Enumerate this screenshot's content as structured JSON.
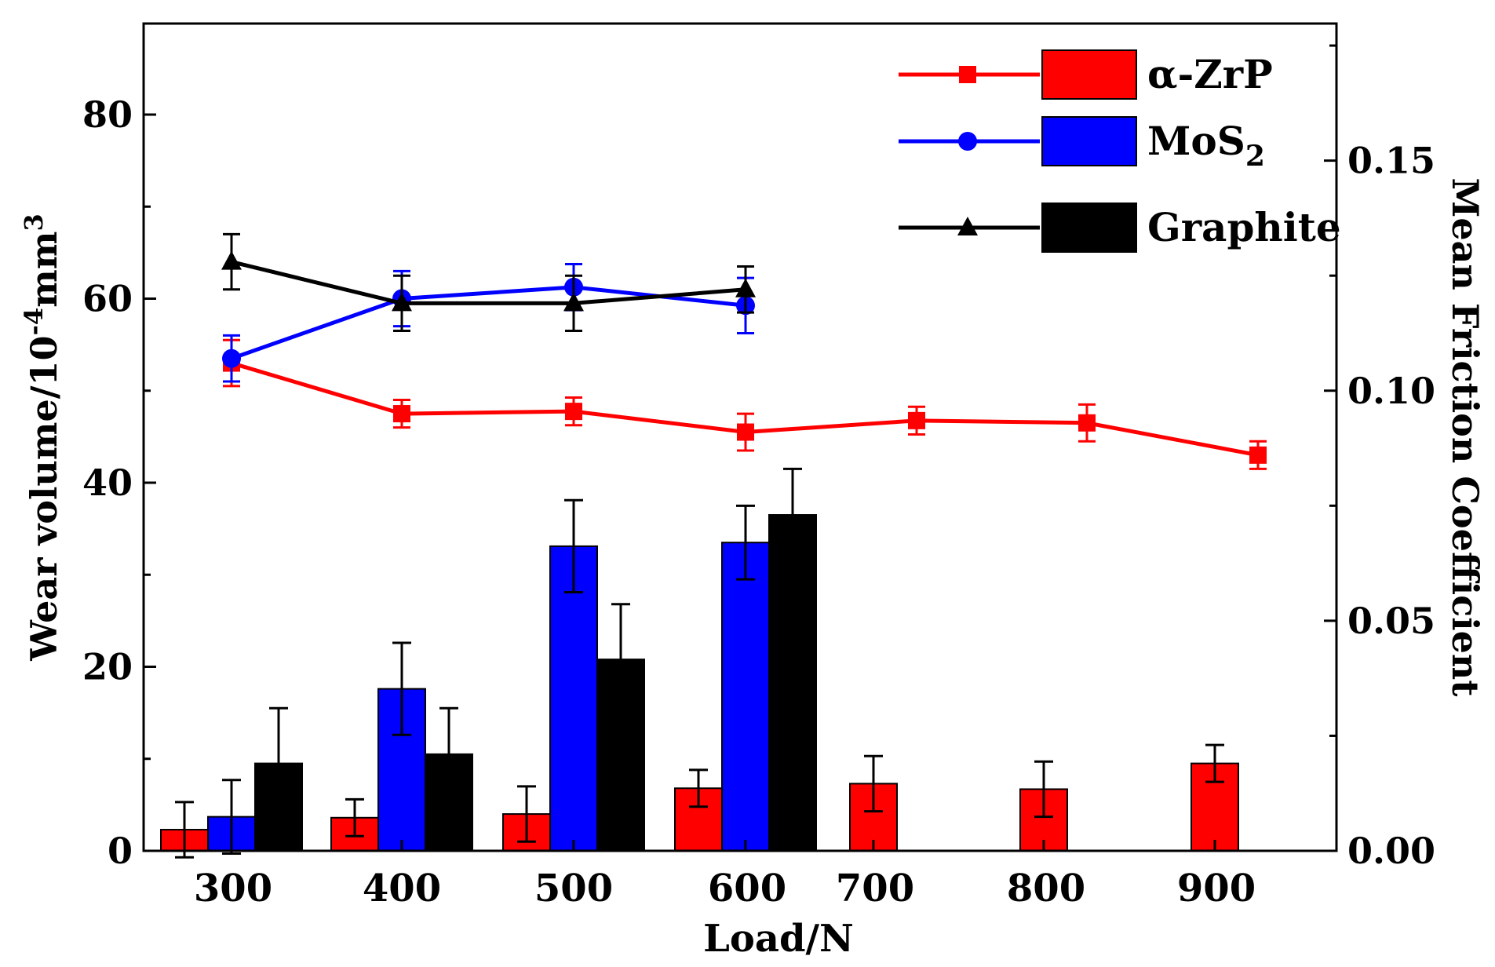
{
  "chart_data": {
    "type": "bar+line",
    "xlabel": "Load/N",
    "ylabel_left": {
      "main": "Wear volume/10",
      "sup1": "-4",
      "mid": "mm",
      "sup2": "3"
    },
    "ylabel_right": "Mean Friction Coefficient",
    "categories": [
      "300",
      "400",
      "500",
      "600",
      "700",
      "800",
      "900"
    ],
    "x": [
      300,
      400,
      500,
      600,
      700,
      800,
      900
    ],
    "ylim_left": [
      0,
      90
    ],
    "ylim_right": [
      0,
      0.18
    ],
    "yticks_left": [
      0,
      20,
      40,
      60,
      80
    ],
    "yticks_right": [
      0.0,
      0.05,
      0.1,
      0.15
    ],
    "ytick_labels_left": [
      "0",
      "20",
      "40",
      "60",
      "80"
    ],
    "ytick_labels_right": [
      "0.00",
      "0.05",
      "0.10",
      "0.15"
    ],
    "bar_series": [
      {
        "name": "α-ZrP",
        "color": "#ff0000",
        "values": [
          2.3,
          3.6,
          4.0,
          6.8,
          7.3,
          6.7,
          9.5
        ],
        "errors": [
          3.0,
          2.0,
          3.0,
          2.0,
          3.0,
          3.0,
          2.0
        ]
      },
      {
        "name": "MoS2",
        "color": "#0000ff",
        "values": [
          3.7,
          17.6,
          33.1,
          33.5,
          null,
          null,
          null
        ],
        "errors": [
          4.0,
          5.0,
          5.0,
          4.0,
          null,
          null,
          null
        ]
      },
      {
        "name": "Graphite",
        "color": "#000000",
        "values": [
          9.5,
          10.5,
          20.8,
          36.5,
          null,
          null,
          null
        ],
        "errors": [
          6.0,
          5.0,
          6.0,
          5.0,
          null,
          null,
          null
        ]
      }
    ],
    "line_series": [
      {
        "name": "α-ZrP",
        "color": "#ff0000",
        "marker": "square",
        "values": [
          0.106,
          0.095,
          0.0955,
          0.091,
          0.0935,
          0.093,
          0.086
        ],
        "errors": [
          0.005,
          0.003,
          0.003,
          0.004,
          0.003,
          0.004,
          0.003
        ]
      },
      {
        "name": "MoS2",
        "color": "#0000ff",
        "marker": "circle",
        "values": [
          0.107,
          0.12,
          0.1225,
          0.1185,
          null,
          null,
          null
        ],
        "errors": [
          0.005,
          0.006,
          0.005,
          0.006,
          null,
          null,
          null
        ]
      },
      {
        "name": "Graphite",
        "color": "#000000",
        "marker": "triangle",
        "values": [
          0.128,
          0.119,
          0.119,
          0.122,
          null,
          null,
          null
        ],
        "errors": [
          0.006,
          0.006,
          0.006,
          0.005,
          null,
          null,
          null
        ]
      }
    ],
    "legend": {
      "position": "top-right",
      "entries": [
        {
          "label": "α-ZrP",
          "color": "#ff0000",
          "marker": "square"
        },
        {
          "label": "MoS",
          "sub": "2",
          "color": "#0000ff",
          "marker": "circle"
        },
        {
          "label": "Graphite",
          "color": "#000000",
          "marker": "triangle"
        }
      ]
    }
  }
}
